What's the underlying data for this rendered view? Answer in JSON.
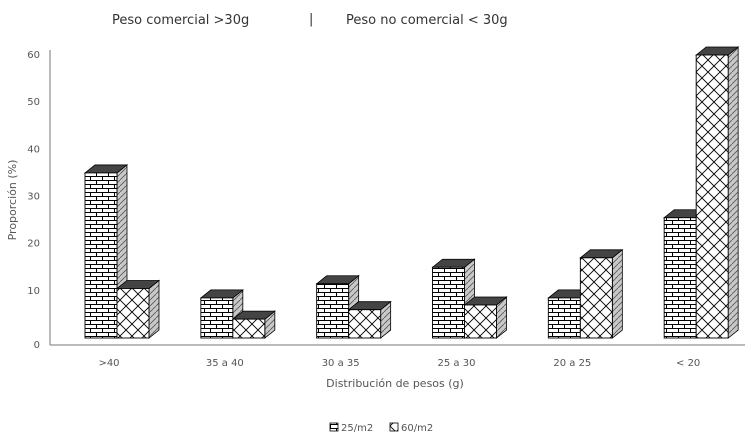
{
  "header": {
    "left_label": "Peso comercial >30g",
    "separator": "|",
    "right_label": "Peso no comercial < 30g"
  },
  "chart_data": {
    "type": "bar",
    "title": "",
    "xlabel": "Distribución de pesos (g)",
    "ylabel": "Proporción (%)",
    "ylim": [
      0,
      60
    ],
    "yticks": [
      "0",
      "10",
      "20",
      "30",
      "40",
      "50",
      "60"
    ],
    "categories": [
      ">40",
      "35 a 40",
      "30 a 35",
      "25 a 30",
      "20 a 25",
      "< 20"
    ],
    "series": [
      {
        "name": "25/m2",
        "pattern": "brick",
        "values": [
          35,
          8.5,
          11.5,
          15,
          8.5,
          25.5
        ]
      },
      {
        "name": "60/m2",
        "pattern": "diamond",
        "values": [
          10.5,
          4,
          6,
          7,
          17,
          60
        ]
      }
    ],
    "legend_position": "bottom-center",
    "grid": false,
    "bar_color": "#ffffff",
    "edge_color": "#000000",
    "top_color": "#444444",
    "side_color": "#aaaaaa"
  }
}
